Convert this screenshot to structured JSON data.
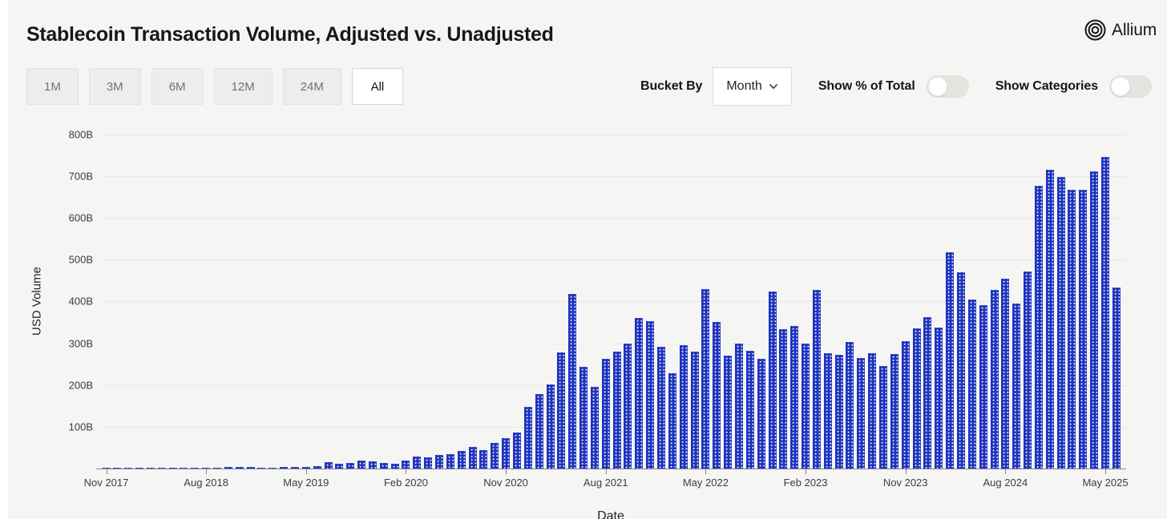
{
  "header": {
    "title": "Stablecoin Transaction Volume, Adjusted vs. Unadjusted",
    "brand": "Allium"
  },
  "toolbar": {
    "range_buttons": [
      {
        "label": "1M",
        "active": false
      },
      {
        "label": "3M",
        "active": false
      },
      {
        "label": "6M",
        "active": false
      },
      {
        "label": "12M",
        "active": false
      },
      {
        "label": "24M",
        "active": false
      },
      {
        "label": "All",
        "active": true
      }
    ],
    "bucket_by_label": "Bucket By",
    "bucket_value": "Month",
    "show_percent_label": "Show % of Total",
    "show_percent_on": false,
    "show_categories_label": "Show Categories",
    "show_categories_on": false
  },
  "chart_data": {
    "type": "bar",
    "title": "Stablecoin Transaction Volume, Adjusted vs. Unadjusted",
    "xlabel": "Date",
    "ylabel": "USD Volume",
    "unit": "billions USD",
    "ylim": [
      0,
      800
    ],
    "grid": true,
    "legend": "none",
    "bar_color": "#1e33bf",
    "bar_pattern": "white-dots",
    "y_ticks": [
      "100B",
      "200B",
      "300B",
      "400B",
      "500B",
      "600B",
      "700B",
      "800B"
    ],
    "x_tick_step": 9,
    "x_tick_labels": [
      "Nov 2017",
      "Aug 2018",
      "May 2019",
      "Feb 2020",
      "Nov 2020",
      "Aug 2021",
      "May 2022",
      "Feb 2023",
      "Nov 2023",
      "Aug 2024",
      "May 2025"
    ],
    "x": [
      "Nov 2017",
      "Dec 2017",
      "Jan 2018",
      "Feb 2018",
      "Mar 2018",
      "Apr 2018",
      "May 2018",
      "Jun 2018",
      "Jul 2018",
      "Aug 2018",
      "Sep 2018",
      "Oct 2018",
      "Nov 2018",
      "Dec 2018",
      "Jan 2019",
      "Feb 2019",
      "Mar 2019",
      "Apr 2019",
      "May 2019",
      "Jun 2019",
      "Jul 2019",
      "Aug 2019",
      "Sep 2019",
      "Oct 2019",
      "Nov 2019",
      "Dec 2019",
      "Jan 2020",
      "Feb 2020",
      "Mar 2020",
      "Apr 2020",
      "May 2020",
      "Jun 2020",
      "Jul 2020",
      "Aug 2020",
      "Sep 2020",
      "Oct 2020",
      "Nov 2020",
      "Dec 2020",
      "Jan 2021",
      "Feb 2021",
      "Mar 2021",
      "Apr 2021",
      "May 2021",
      "Jun 2021",
      "Jul 2021",
      "Aug 2021",
      "Sep 2021",
      "Oct 2021",
      "Nov 2021",
      "Dec 2021",
      "Jan 2022",
      "Feb 2022",
      "Mar 2022",
      "Apr 2022",
      "May 2022",
      "Jun 2022",
      "Jul 2022",
      "Aug 2022",
      "Sep 2022",
      "Oct 2022",
      "Nov 2022",
      "Dec 2022",
      "Jan 2023",
      "Feb 2023",
      "Mar 2023",
      "Apr 2023",
      "May 2023",
      "Jun 2023",
      "Jul 2023",
      "Aug 2023",
      "Sep 2023",
      "Oct 2023",
      "Nov 2023",
      "Dec 2023",
      "Jan 2024",
      "Feb 2024",
      "Mar 2024",
      "Apr 2024",
      "May 2024",
      "Jun 2024",
      "Jul 2024",
      "Aug 2024",
      "Sep 2024",
      "Oct 2024",
      "Nov 2024",
      "Dec 2024",
      "Jan 2025",
      "Feb 2025",
      "Mar 2025",
      "Apr 2025",
      "May 2025",
      "Jun 2025"
    ],
    "values": [
      1,
      1.5,
      2,
      1.5,
      1.5,
      1.5,
      2,
      2,
      2,
      2.5,
      2.5,
      3,
      4,
      3.5,
      2,
      2.5,
      3,
      4,
      3,
      5,
      16,
      11,
      13,
      19,
      18,
      13,
      11,
      19,
      29,
      27,
      33,
      35,
      42,
      52,
      44,
      61,
      73,
      86,
      148,
      179,
      202,
      278,
      417,
      244,
      196,
      263,
      280,
      299,
      361,
      352,
      292,
      229,
      296,
      280,
      429,
      350,
      271,
      300,
      282,
      263,
      424,
      334,
      342,
      300,
      428,
      277,
      273,
      303,
      265,
      277,
      246,
      275,
      305,
      336,
      363,
      338,
      518,
      470,
      405,
      392,
      427,
      454,
      394,
      471,
      677,
      716,
      697,
      668,
      668,
      712,
      745,
      433
    ]
  }
}
